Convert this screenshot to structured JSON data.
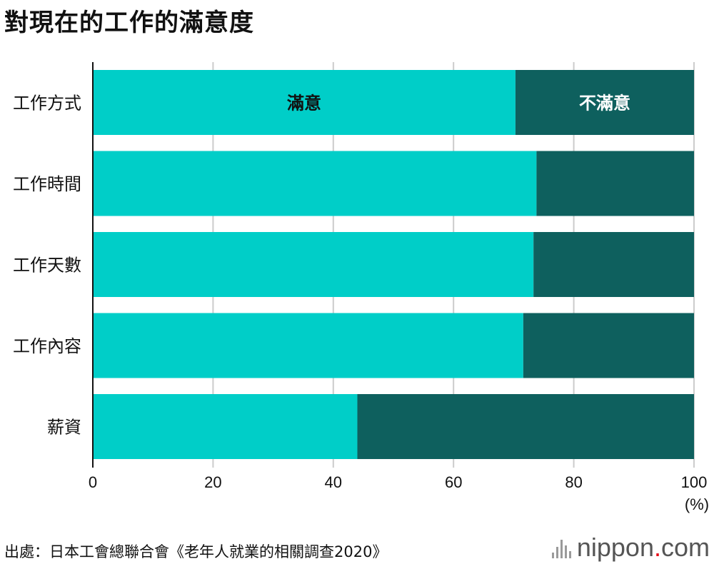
{
  "title": "對現在的工作的滿意度",
  "chart_data": {
    "type": "bar",
    "orientation": "horizontal",
    "stacked": true,
    "categories": [
      "工作方式",
      "工作時間",
      "工作天數",
      "工作內容",
      "薪資"
    ],
    "series": [
      {
        "name": "滿意",
        "color": "#00cec8",
        "values": [
          70.3,
          73.8,
          73.3,
          71.6,
          44.0
        ]
      },
      {
        "name": "不滿意",
        "color": "#0e605e",
        "values": [
          29.7,
          26.2,
          26.7,
          28.4,
          56.0
        ]
      }
    ],
    "xlim": [
      0,
      100
    ],
    "xticks": [
      0,
      20,
      40,
      60,
      80,
      100
    ],
    "xlabel": "(%)",
    "grid": true,
    "legend": "series names printed inside the first bar"
  },
  "source": "出處：日本工會總聯合會《老年人就業的相關調查2020》",
  "logo": {
    "name": "nippon",
    "dot": ".",
    "suffix": "com"
  }
}
